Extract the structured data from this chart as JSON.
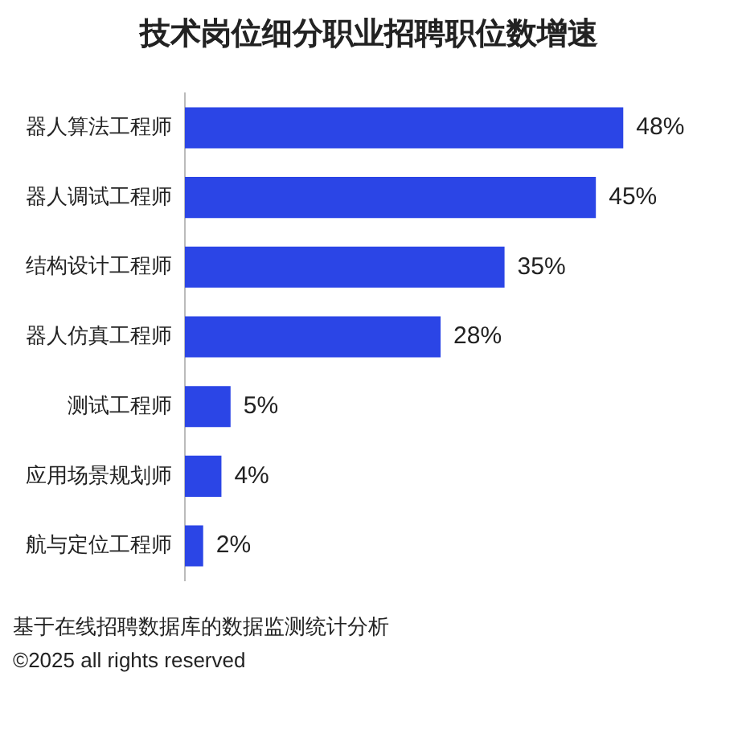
{
  "chart_data": {
    "type": "bar",
    "orientation": "horizontal",
    "title": "技术岗位细分职业招聘职位数增速",
    "categories": [
      "器人算法工程师",
      "器人调试工程师",
      "结构设计工程师",
      "器人仿真工程师",
      "测试工程师",
      "应用场景规划师",
      "航与定位工程师"
    ],
    "series": [
      {
        "color": "#2b45e6",
        "values": [
          48,
          45,
          35,
          28,
          5,
          4,
          2
        ],
        "value_labels": [
          "48%",
          "45%",
          "35%",
          "28%",
          "5%",
          "4%",
          "2%"
        ]
      }
    ],
    "legend": false,
    "annotations": [
      "基于在线招聘数据库的数据监测统计分析",
      "©2025 all rights reserved"
    ]
  }
}
